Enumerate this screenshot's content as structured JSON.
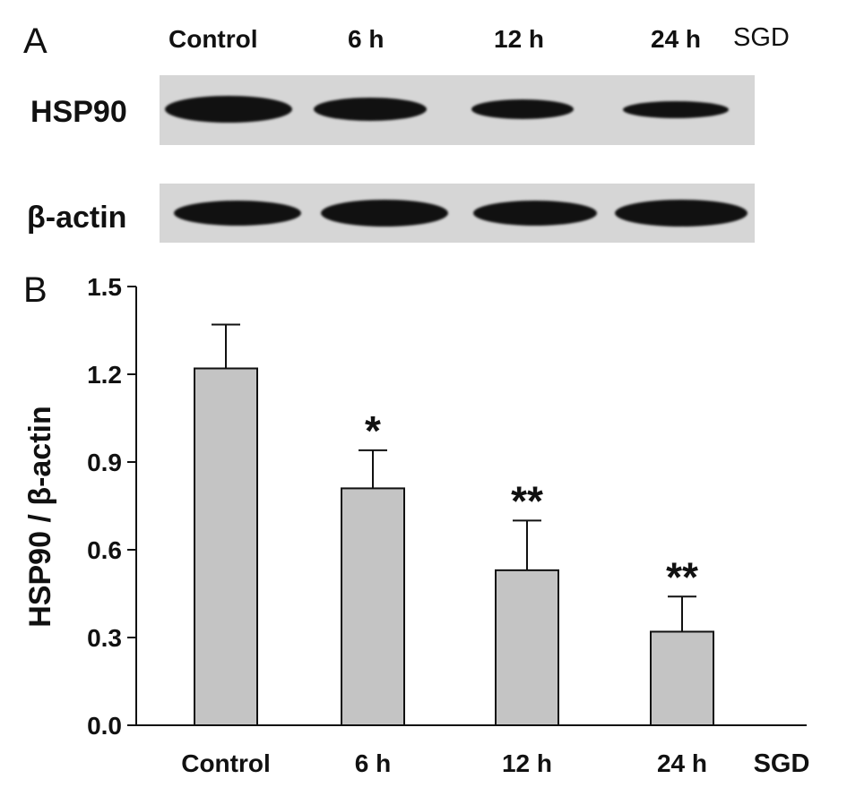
{
  "panel_a": {
    "letter": "A",
    "lanes": [
      "Control",
      "6 h",
      "12 h",
      "24 h"
    ],
    "treatment_label": "SGD",
    "blots": [
      {
        "label": "HSP90",
        "relative_intensity": [
          1.0,
          0.85,
          0.72,
          0.62
        ]
      },
      {
        "label": "β-actin",
        "relative_intensity": [
          1.0,
          1.0,
          1.0,
          1.0
        ]
      }
    ]
  },
  "panel_b": {
    "letter": "B"
  },
  "colors": {
    "bar_fill": "#c4c4c4",
    "bar_stroke": "#111111",
    "blot_background": "#d6d6d6",
    "band": "#111111"
  },
  "chart_data": {
    "type": "bar",
    "categories": [
      "Control",
      "6 h",
      "12 h",
      "24 h"
    ],
    "values": [
      1.22,
      0.81,
      0.53,
      0.32
    ],
    "error_bars": [
      0.15,
      0.13,
      0.17,
      0.12
    ],
    "significance": [
      "",
      "*",
      "**",
      "**"
    ],
    "xlabel": "SGD",
    "ylabel": "HSP90 / β-actin",
    "ylim": [
      0.0,
      1.5
    ],
    "yticks": [
      "0.0",
      "0.3",
      "0.6",
      "0.9",
      "1.2",
      "1.5"
    ],
    "grid": false,
    "legend": "none"
  }
}
